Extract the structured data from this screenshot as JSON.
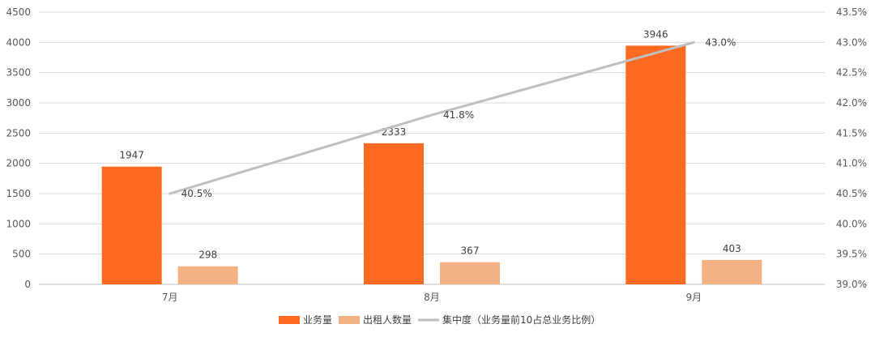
{
  "chart_data": {
    "type": "bar",
    "categories": [
      "7月",
      "8月",
      "9月"
    ],
    "series": [
      {
        "name": "业务量",
        "type": "bar",
        "axis": "left",
        "color": "#FF6A22",
        "values": [
          1947,
          2333,
          3946
        ],
        "labels": [
          "1947",
          "2333",
          "3946"
        ]
      },
      {
        "name": "出租人数量",
        "type": "bar",
        "axis": "left",
        "color": "#F4B183",
        "values": [
          298,
          367,
          403
        ],
        "labels": [
          "298",
          "367",
          "403"
        ]
      },
      {
        "name": "集中度（业务量前10占总业务比例）",
        "type": "line",
        "axis": "right",
        "color": "#BFBFBF",
        "values": [
          40.5,
          41.8,
          43.0
        ],
        "labels": [
          "40.5%",
          "41.8%",
          "43.0%"
        ]
      }
    ],
    "y_left": {
      "min": 0,
      "max": 4500,
      "ticks": [
        "0",
        "500",
        "1000",
        "1500",
        "2000",
        "2500",
        "3000",
        "3500",
        "4000",
        "4500"
      ]
    },
    "y_right": {
      "min": 39.0,
      "max": 43.5,
      "ticks": [
        "39.0%",
        "39.5%",
        "40.0%",
        "40.5%",
        "41.0%",
        "41.5%",
        "42.0%",
        "42.5%",
        "43.0%",
        "43.5%"
      ]
    },
    "grid": true,
    "legend_position": "bottom"
  }
}
